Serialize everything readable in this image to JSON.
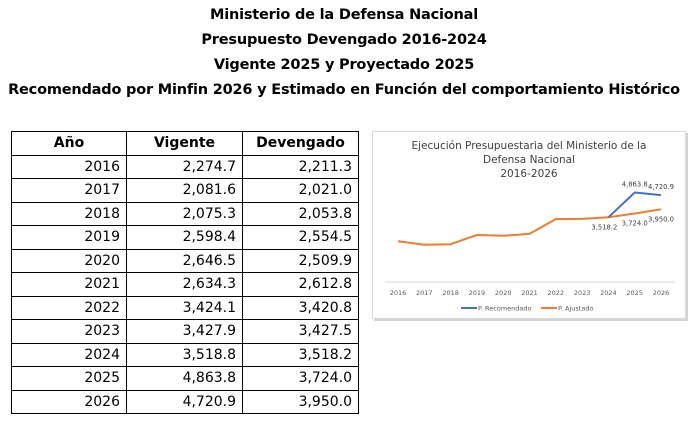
{
  "titles": [
    "Ministerio de la Defensa Nacional",
    "Presupuesto Devengado 2016-2024",
    "Vigente 2025 y Proyectado 2025",
    "Recomendado por Minfin 2026 y Estimado en Función del comportamiento Histórico"
  ],
  "table": {
    "headers": [
      "Año",
      "Vigente",
      "Devengado"
    ],
    "rows": [
      [
        "2016",
        "2,274.7",
        "2,211.3"
      ],
      [
        "2017",
        "2,081.6",
        "2,021.0"
      ],
      [
        "2018",
        "2,075.3",
        "2,053.8"
      ],
      [
        "2019",
        "2,598.4",
        "2,554.5"
      ],
      [
        "2020",
        "2,646.5",
        "2,509.9"
      ],
      [
        "2021",
        "2,634.3",
        "2,612.8"
      ],
      [
        "2022",
        "3,424.1",
        "3,420.8"
      ],
      [
        "2023",
        "3,427.9",
        "3,427.5"
      ],
      [
        "2024",
        "3,518.8",
        "3,518.2"
      ],
      [
        "2025",
        "4,863.8",
        "3,724.0"
      ],
      [
        "2026",
        "4,720.9",
        "3,950.0"
      ]
    ]
  },
  "chart_data": {
    "type": "line",
    "title": [
      "Ejecución Presupuestaria del Ministerio de la",
      "Defensa Nacional",
      "2016-2026"
    ],
    "xlabel": "",
    "ylabel": "",
    "x": [
      "2016",
      "2017",
      "2018",
      "2019",
      "2020",
      "2021",
      "2022",
      "2023",
      "2024",
      "2025",
      "2026"
    ],
    "ylim": [
      0,
      5000
    ],
    "grid": false,
    "legend_position": "bottom",
    "series": [
      {
        "name": "P. Recomendado",
        "color": "#4472c4",
        "values": [
          null,
          null,
          null,
          null,
          null,
          null,
          null,
          null,
          3518.2,
          4863.8,
          4720.9
        ],
        "labels": [
          null,
          null,
          null,
          null,
          null,
          null,
          null,
          null,
          null,
          "4,863.8",
          "4,720.9"
        ]
      },
      {
        "name": "P. Ajustado",
        "color": "#ed7d31",
        "values": [
          2211.3,
          2021.0,
          2053.8,
          2554.5,
          2509.9,
          2612.8,
          3420.8,
          3427.5,
          3518.2,
          3724.0,
          3950.0
        ],
        "labels": [
          null,
          null,
          null,
          null,
          null,
          null,
          null,
          null,
          "3,518.2",
          "3,724.0",
          "3,950.0"
        ]
      }
    ]
  }
}
